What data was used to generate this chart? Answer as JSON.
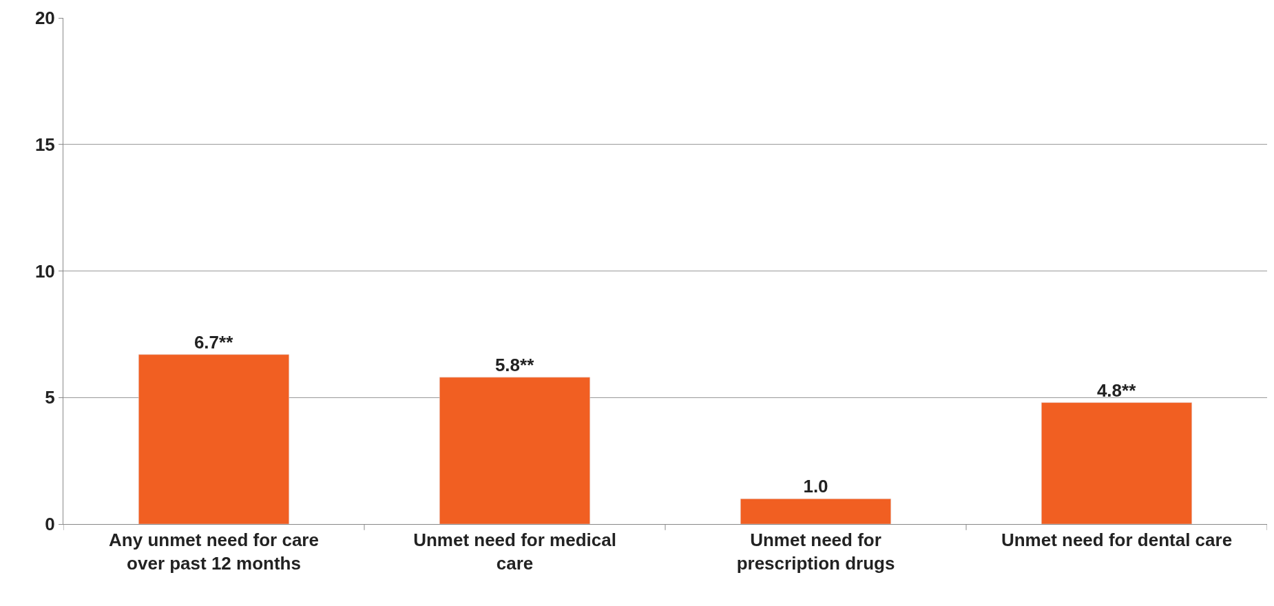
{
  "chart_data": {
    "type": "bar",
    "categories": [
      "Any unmet need for care over past 12 months",
      "Unmet need for medical care",
      "Unmet need for prescription drugs",
      "Unmet need for dental care"
    ],
    "values": [
      6.7,
      5.8,
      1.0,
      4.8
    ],
    "value_labels": [
      "6.7**",
      "5.8**",
      "1.0",
      "4.8**"
    ],
    "color": "#f15f22",
    "ylim": [
      0,
      20
    ],
    "yticks": [
      0,
      5,
      10,
      15,
      20
    ],
    "grid": "y",
    "legend": false
  }
}
